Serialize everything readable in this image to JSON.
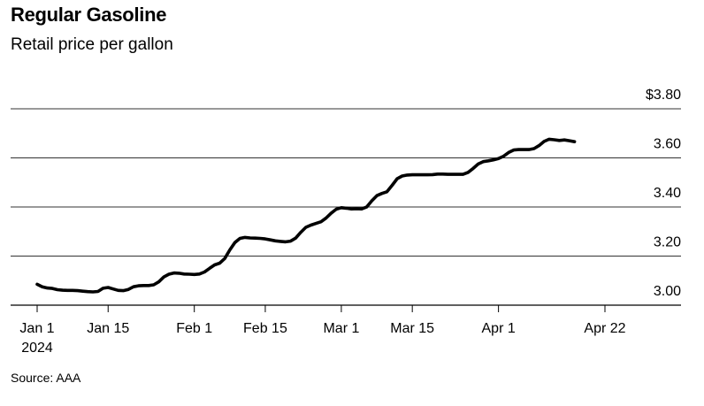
{
  "title": "Regular Gasoline",
  "subtitle": "Retail price per gallon",
  "source": "Source: AAA",
  "chart_data": {
    "type": "line",
    "title": "Regular Gasoline",
    "subtitle": "Retail price per gallon",
    "xlabel": "",
    "ylabel": "",
    "ylim": [
      3.0,
      3.8
    ],
    "grid": true,
    "y_ticks": [
      {
        "value": 3.8,
        "label": "$3.80"
      },
      {
        "value": 3.6,
        "label": "3.60"
      },
      {
        "value": 3.4,
        "label": "3.40"
      },
      {
        "value": 3.2,
        "label": "3.20"
      },
      {
        "value": 3.0,
        "label": "3.00"
      }
    ],
    "x_ticks": [
      {
        "date": "2024-01-01",
        "label": "Jan 1",
        "sublabel": "2024"
      },
      {
        "date": "2024-01-15",
        "label": "Jan 15"
      },
      {
        "date": "2024-02-01",
        "label": "Feb 1"
      },
      {
        "date": "2024-02-15",
        "label": "Feb 15"
      },
      {
        "date": "2024-03-01",
        "label": "Mar 1"
      },
      {
        "date": "2024-03-15",
        "label": "Mar 15"
      },
      {
        "date": "2024-04-01",
        "label": "Apr 1"
      },
      {
        "date": "2024-04-22",
        "label": "Apr 22"
      }
    ],
    "series": [
      {
        "color": "#000000",
        "points": [
          [
            "2024-01-01",
            3.085
          ],
          [
            "2024-01-02",
            3.075
          ],
          [
            "2024-01-03",
            3.07
          ],
          [
            "2024-01-04",
            3.068
          ],
          [
            "2024-01-05",
            3.063
          ],
          [
            "2024-01-06",
            3.061
          ],
          [
            "2024-01-07",
            3.06
          ],
          [
            "2024-01-08",
            3.06
          ],
          [
            "2024-01-09",
            3.059
          ],
          [
            "2024-01-10",
            3.057
          ],
          [
            "2024-01-11",
            3.055
          ],
          [
            "2024-01-12",
            3.054
          ],
          [
            "2024-01-13",
            3.056
          ],
          [
            "2024-01-14",
            3.069
          ],
          [
            "2024-01-15",
            3.072
          ],
          [
            "2024-01-16",
            3.066
          ],
          [
            "2024-01-17",
            3.06
          ],
          [
            "2024-01-18",
            3.059
          ],
          [
            "2024-01-19",
            3.064
          ],
          [
            "2024-01-20",
            3.075
          ],
          [
            "2024-01-21",
            3.079
          ],
          [
            "2024-01-22",
            3.08
          ],
          [
            "2024-01-23",
            3.08
          ],
          [
            "2024-01-24",
            3.083
          ],
          [
            "2024-01-25",
            3.095
          ],
          [
            "2024-01-26",
            3.115
          ],
          [
            "2024-01-27",
            3.126
          ],
          [
            "2024-01-28",
            3.131
          ],
          [
            "2024-01-29",
            3.13
          ],
          [
            "2024-01-30",
            3.127
          ],
          [
            "2024-01-31",
            3.126
          ],
          [
            "2024-02-01",
            3.125
          ],
          [
            "2024-02-02",
            3.127
          ],
          [
            "2024-02-03",
            3.135
          ],
          [
            "2024-02-04",
            3.15
          ],
          [
            "2024-02-05",
            3.164
          ],
          [
            "2024-02-06",
            3.171
          ],
          [
            "2024-02-07",
            3.19
          ],
          [
            "2024-02-08",
            3.225
          ],
          [
            "2024-02-09",
            3.255
          ],
          [
            "2024-02-10",
            3.272
          ],
          [
            "2024-02-11",
            3.276
          ],
          [
            "2024-02-12",
            3.274
          ],
          [
            "2024-02-13",
            3.273
          ],
          [
            "2024-02-14",
            3.272
          ],
          [
            "2024-02-15",
            3.27
          ],
          [
            "2024-02-16",
            3.266
          ],
          [
            "2024-02-17",
            3.262
          ],
          [
            "2024-02-18",
            3.26
          ],
          [
            "2024-02-19",
            3.258
          ],
          [
            "2024-02-20",
            3.261
          ],
          [
            "2024-02-21",
            3.273
          ],
          [
            "2024-02-22",
            3.297
          ],
          [
            "2024-02-23",
            3.317
          ],
          [
            "2024-02-24",
            3.326
          ],
          [
            "2024-02-25",
            3.333
          ],
          [
            "2024-02-26",
            3.34
          ],
          [
            "2024-02-27",
            3.355
          ],
          [
            "2024-02-28",
            3.375
          ],
          [
            "2024-02-29",
            3.391
          ],
          [
            "2024-03-01",
            3.397
          ],
          [
            "2024-03-02",
            3.395
          ],
          [
            "2024-03-03",
            3.392
          ],
          [
            "2024-03-04",
            3.393
          ],
          [
            "2024-03-05",
            3.392
          ],
          [
            "2024-03-06",
            3.4
          ],
          [
            "2024-03-07",
            3.425
          ],
          [
            "2024-03-08",
            3.446
          ],
          [
            "2024-03-09",
            3.455
          ],
          [
            "2024-03-10",
            3.462
          ],
          [
            "2024-03-11",
            3.488
          ],
          [
            "2024-03-12",
            3.515
          ],
          [
            "2024-03-13",
            3.526
          ],
          [
            "2024-03-14",
            3.53
          ],
          [
            "2024-03-15",
            3.531
          ],
          [
            "2024-03-16",
            3.531
          ],
          [
            "2024-03-17",
            3.531
          ],
          [
            "2024-03-18",
            3.531
          ],
          [
            "2024-03-19",
            3.532
          ],
          [
            "2024-03-20",
            3.534
          ],
          [
            "2024-03-21",
            3.534
          ],
          [
            "2024-03-22",
            3.533
          ],
          [
            "2024-03-23",
            3.533
          ],
          [
            "2024-03-24",
            3.533
          ],
          [
            "2024-03-25",
            3.533
          ],
          [
            "2024-03-26",
            3.541
          ],
          [
            "2024-03-27",
            3.557
          ],
          [
            "2024-03-28",
            3.575
          ],
          [
            "2024-03-29",
            3.585
          ],
          [
            "2024-03-30",
            3.588
          ],
          [
            "2024-03-31",
            3.592
          ],
          [
            "2024-04-01",
            3.597
          ],
          [
            "2024-04-02",
            3.607
          ],
          [
            "2024-04-03",
            3.622
          ],
          [
            "2024-04-04",
            3.632
          ],
          [
            "2024-04-05",
            3.634
          ],
          [
            "2024-04-06",
            3.634
          ],
          [
            "2024-04-07",
            3.634
          ],
          [
            "2024-04-08",
            3.638
          ],
          [
            "2024-04-09",
            3.65
          ],
          [
            "2024-04-10",
            3.667
          ],
          [
            "2024-04-11",
            3.676
          ],
          [
            "2024-04-12",
            3.674
          ],
          [
            "2024-04-13",
            3.671
          ],
          [
            "2024-04-14",
            3.673
          ],
          [
            "2024-04-15",
            3.67
          ],
          [
            "2024-04-16",
            3.666
          ]
        ]
      }
    ]
  }
}
